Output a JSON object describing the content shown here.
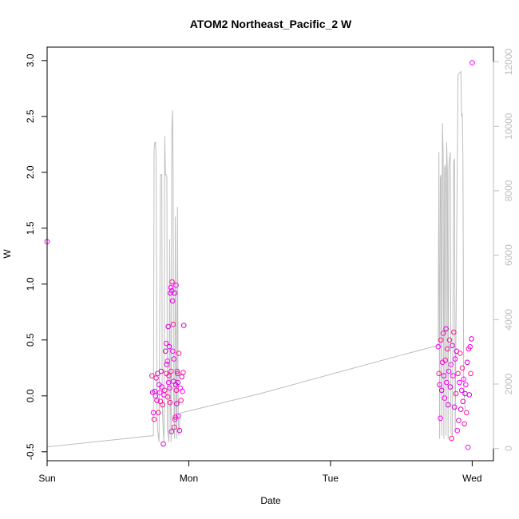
{
  "chart_data": {
    "type": "scatter",
    "title": "ATOM2 Northeast_Pacific_2 W",
    "xlabel": "Date",
    "ylabel": "W",
    "x_axis": {
      "range_days": [
        0,
        3.15
      ],
      "ticks": [
        {
          "day": 0,
          "label": "Sun"
        },
        {
          "day": 1,
          "label": "Mon"
        },
        {
          "day": 2,
          "label": "Tue"
        },
        {
          "day": 3,
          "label": "Wed"
        }
      ]
    },
    "y_left": {
      "range": [
        -0.58,
        3.12
      ],
      "ticks": [
        -0.5,
        0.0,
        0.5,
        1.0,
        1.5,
        2.0,
        2.5,
        3.0
      ],
      "tick_labels": [
        "-0.5",
        "0.0",
        "0.5",
        "1.0",
        "1.5",
        "2.0",
        "2.5",
        "3.0"
      ]
    },
    "y_right": {
      "range": [
        -380,
        12460
      ],
      "ticks": [
        0,
        2000,
        4000,
        6000,
        8000,
        10000,
        12000
      ],
      "tick_labels": [
        "0",
        "2000",
        "4000",
        "6000",
        "8000",
        "10000",
        "12000"
      ],
      "color": "#bebebe"
    },
    "grid": false,
    "series": [
      {
        "kind": "points",
        "axis": "left",
        "colors": [
          "#ff00ff",
          "#ff1493",
          "#d400d4"
        ],
        "points": [
          [
            0.0,
            1.38
          ],
          [
            0.74,
            0.18
          ],
          [
            0.745,
            0.03
          ],
          [
            0.75,
            -0.15
          ],
          [
            0.755,
            -0.21
          ],
          [
            0.76,
            0.04
          ],
          [
            0.765,
            0.0
          ],
          [
            0.77,
            0.16
          ],
          [
            0.775,
            -0.04
          ],
          [
            0.78,
            0.2
          ],
          [
            0.785,
            -0.15
          ],
          [
            0.79,
            0.1
          ],
          [
            0.795,
            0.03
          ],
          [
            0.8,
            -0.05
          ],
          [
            0.805,
            0.22
          ],
          [
            0.81,
            0.08
          ],
          [
            0.815,
            -0.08
          ],
          [
            0.82,
            -0.43
          ],
          [
            0.825,
            0.01
          ],
          [
            0.83,
            0.05
          ],
          [
            0.835,
            0.4
          ],
          [
            0.84,
            0.47
          ],
          [
            0.842,
            0.2
          ],
          [
            0.845,
            0.28
          ],
          [
            0.85,
            0.31
          ],
          [
            0.852,
            -0.01
          ],
          [
            0.855,
            0.62
          ],
          [
            0.857,
            0.12
          ],
          [
            0.86,
            0.18
          ],
          [
            0.862,
            0.44
          ],
          [
            0.865,
            0.07
          ],
          [
            0.868,
            -0.06
          ],
          [
            0.87,
            0.92
          ],
          [
            0.873,
            0.97
          ],
          [
            0.875,
            0.22
          ],
          [
            0.878,
            -0.32
          ],
          [
            0.88,
            0.94
          ],
          [
            0.882,
            1.02
          ],
          [
            0.885,
            0.85
          ],
          [
            0.887,
            0.4
          ],
          [
            0.89,
            0.64
          ],
          [
            0.892,
            0.13
          ],
          [
            0.895,
            0.33
          ],
          [
            0.897,
            -0.28
          ],
          [
            0.9,
            0.92
          ],
          [
            0.902,
            -0.21
          ],
          [
            0.905,
            -0.19
          ],
          [
            0.908,
            0.1
          ],
          [
            0.91,
            0.99
          ],
          [
            0.912,
            0.05
          ],
          [
            0.915,
            -0.07
          ],
          [
            0.918,
            0.22
          ],
          [
            0.92,
            0.2
          ],
          [
            0.923,
            0.12
          ],
          [
            0.925,
            -0.18
          ],
          [
            0.93,
            0.38
          ],
          [
            0.935,
            -0.31
          ],
          [
            0.94,
            0.07
          ],
          [
            0.945,
            -0.04
          ],
          [
            0.95,
            0.17
          ],
          [
            0.955,
            0.04
          ],
          [
            0.96,
            0.21
          ],
          [
            0.965,
            0.63
          ],
          [
            2.76,
            0.44
          ],
          [
            2.765,
            0.2
          ],
          [
            2.77,
            0.1
          ],
          [
            2.775,
            -0.2
          ],
          [
            2.78,
            0.5
          ],
          [
            2.785,
            0.05
          ],
          [
            2.79,
            0.3
          ],
          [
            2.795,
            0.56
          ],
          [
            2.8,
            0.18
          ],
          [
            2.805,
            -0.02
          ],
          [
            2.81,
            0.32
          ],
          [
            2.815,
            0.6
          ],
          [
            2.82,
            0.12
          ],
          [
            2.825,
            0.42
          ],
          [
            2.83,
            -0.08
          ],
          [
            2.835,
            0.22
          ],
          [
            2.84,
            0.5
          ],
          [
            2.845,
            0.08
          ],
          [
            2.85,
            0.28
          ],
          [
            2.855,
            -0.38
          ],
          [
            2.86,
            0.45
          ],
          [
            2.865,
            0.18
          ],
          [
            2.87,
            0.57
          ],
          [
            2.875,
            -0.1
          ],
          [
            2.88,
            0.33
          ],
          [
            2.885,
            0.02
          ],
          [
            2.89,
            0.4
          ],
          [
            2.895,
            -0.31
          ],
          [
            2.9,
            0.2
          ],
          [
            2.905,
            -0.22
          ],
          [
            2.91,
            0.12
          ],
          [
            2.915,
            0.38
          ],
          [
            2.92,
            -0.12
          ],
          [
            2.925,
            0.05
          ],
          [
            2.93,
            0.25
          ],
          [
            2.935,
            -0.05
          ],
          [
            2.94,
            0.15
          ],
          [
            2.945,
            -0.25
          ],
          [
            2.95,
            0.02
          ],
          [
            2.955,
            0.1
          ],
          [
            2.96,
            -0.15
          ],
          [
            2.965,
            0.3
          ],
          [
            2.97,
            -0.46
          ],
          [
            2.975,
            0.42
          ],
          [
            2.98,
            0.01
          ],
          [
            2.985,
            0.44
          ],
          [
            2.99,
            0.2
          ],
          [
            2.995,
            0.51
          ],
          [
            3.0,
            2.98
          ]
        ]
      },
      {
        "kind": "line",
        "axis": "right",
        "color": "#bebebe",
        "points": [
          [
            0.0,
            200
          ],
          [
            0.0,
            50
          ],
          [
            0.75,
            400
          ],
          [
            0.755,
            9300
          ],
          [
            0.76,
            9500
          ],
          [
            0.765,
            9500
          ],
          [
            0.77,
            8900
          ],
          [
            0.775,
            1200
          ],
          [
            0.78,
            600
          ],
          [
            0.79,
            200
          ],
          [
            0.8,
            8500
          ],
          [
            0.81,
            8500
          ],
          [
            0.812,
            1400
          ],
          [
            0.82,
            500
          ],
          [
            0.825,
            200
          ],
          [
            0.83,
            9700
          ],
          [
            0.835,
            8500
          ],
          [
            0.84,
            8500
          ],
          [
            0.845,
            8400
          ],
          [
            0.848,
            600
          ],
          [
            0.86,
            200
          ],
          [
            0.865,
            6500
          ],
          [
            0.87,
            1500
          ],
          [
            0.875,
            200
          ],
          [
            0.88,
            9900
          ],
          [
            0.885,
            10500
          ],
          [
            0.89,
            8400
          ],
          [
            0.892,
            2000
          ],
          [
            0.9,
            300
          ],
          [
            0.905,
            7200
          ],
          [
            0.91,
            1400
          ],
          [
            0.915,
            300
          ],
          [
            0.92,
            7500
          ],
          [
            0.925,
            1000
          ],
          [
            0.93,
            400
          ],
          [
            0.94,
            1100
          ],
          [
            1.5,
            1700
          ],
          [
            2.0,
            2300
          ],
          [
            2.5,
            2900
          ],
          [
            2.76,
            3200
          ],
          [
            2.765,
            9200
          ],
          [
            2.77,
            300
          ],
          [
            2.775,
            8400
          ],
          [
            2.78,
            8500
          ],
          [
            2.785,
            400
          ],
          [
            2.79,
            10100
          ],
          [
            2.795,
            9200
          ],
          [
            2.8,
            300
          ],
          [
            2.805,
            8700
          ],
          [
            2.81,
            8800
          ],
          [
            2.815,
            400
          ],
          [
            2.82,
            9500
          ],
          [
            2.825,
            8600
          ],
          [
            2.83,
            300
          ],
          [
            2.835,
            8700
          ],
          [
            2.84,
            9000
          ],
          [
            2.845,
            9200
          ],
          [
            2.85,
            500
          ],
          [
            2.86,
            400
          ],
          [
            2.87,
            8900
          ],
          [
            2.875,
            9000
          ],
          [
            2.88,
            500
          ],
          [
            2.9,
            11600
          ],
          [
            2.92,
            11700
          ],
          [
            2.925,
            10300
          ],
          [
            2.93,
            10400
          ],
          [
            2.935,
            9000
          ],
          [
            2.94,
            2000
          ],
          [
            2.95,
            1200
          ]
        ]
      }
    ]
  }
}
